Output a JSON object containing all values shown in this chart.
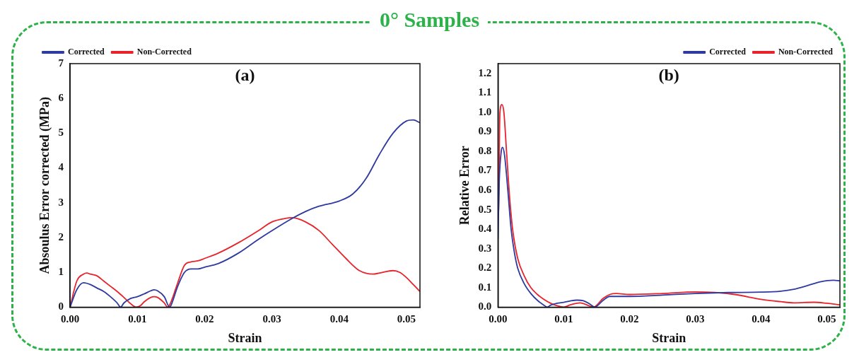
{
  "chart_data": [
    {
      "type": "line",
      "title": "0° Samples",
      "xlabel": "Strain",
      "ylabel": "Absoulus Error corrected (MPa)",
      "annotations": [
        "(a)"
      ],
      "legend": "top left",
      "xlim": [
        0,
        0.052
      ],
      "xticks": [
        {
          "value": 0,
          "label": "0.00"
        },
        0.01,
        0.02,
        0.03,
        0.04,
        0.05
      ],
      "ylim": [
        0,
        7
      ],
      "yticks": [
        0,
        1,
        2,
        3,
        4,
        5,
        6,
        7
      ],
      "series": [
        {
          "name": "Corrected",
          "color": "#2e3a9f",
          "x": [
            0,
            0.001,
            0.002,
            0.003,
            0.004,
            0.005,
            0.006,
            0.007,
            0.0075,
            0.008,
            0.009,
            0.01,
            0.011,
            0.012,
            0.0125,
            0.013,
            0.014,
            0.0148,
            0.015,
            0.016,
            0.017,
            0.018,
            0.019,
            0.02,
            0.022,
            0.025,
            0.028,
            0.03,
            0.033,
            0.035,
            0.037,
            0.04,
            0.042,
            0.044,
            0.046,
            0.048,
            0.05,
            0.051,
            0.052
          ],
          "values": [
            0,
            0.5,
            0.7,
            0.65,
            0.55,
            0.45,
            0.3,
            0.12,
            0,
            0.12,
            0.25,
            0.3,
            0.38,
            0.47,
            0.5,
            0.47,
            0.3,
            0,
            0.05,
            0.6,
            1.0,
            1.1,
            1.1,
            1.15,
            1.25,
            1.55,
            1.95,
            2.2,
            2.55,
            2.75,
            2.9,
            3.05,
            3.25,
            3.7,
            4.4,
            5.0,
            5.35,
            5.38,
            5.3
          ]
        },
        {
          "name": "Non-Corrected",
          "color": "#e8232b",
          "x": [
            0,
            0.001,
            0.002,
            0.0025,
            0.003,
            0.004,
            0.005,
            0.006,
            0.007,
            0.008,
            0.009,
            0.0098,
            0.0105,
            0.011,
            0.012,
            0.0125,
            0.013,
            0.014,
            0.0145,
            0.015,
            0.016,
            0.017,
            0.018,
            0.019,
            0.02,
            0.022,
            0.025,
            0.028,
            0.03,
            0.032,
            0.033,
            0.035,
            0.037,
            0.039,
            0.041,
            0.043,
            0.045,
            0.046,
            0.048,
            0.049,
            0.05,
            0.051,
            0.052
          ],
          "values": [
            0,
            0.75,
            0.95,
            0.98,
            0.95,
            0.9,
            0.75,
            0.6,
            0.45,
            0.28,
            0.1,
            0,
            0.05,
            0.15,
            0.28,
            0.3,
            0.28,
            0.12,
            0,
            0.15,
            0.7,
            1.2,
            1.3,
            1.33,
            1.4,
            1.55,
            1.85,
            2.2,
            2.45,
            2.55,
            2.57,
            2.45,
            2.2,
            1.8,
            1.4,
            1.05,
            0.95,
            0.98,
            1.05,
            1.0,
            0.85,
            0.65,
            0.45
          ]
        }
      ]
    },
    {
      "type": "line",
      "xlabel": "Strain",
      "ylabel": "Relative Error",
      "annotations": [
        "(b)"
      ],
      "legend": "top right",
      "xlim": [
        0,
        0.052
      ],
      "xticks": [
        {
          "value": 0,
          "label": "0.00"
        },
        0.01,
        0.02,
        0.03,
        0.04,
        0.05
      ],
      "ylim": [
        0,
        1.25
      ],
      "yticks": [
        {
          "value": 0,
          "label": "0.0"
        },
        0.1,
        0.2,
        0.3,
        0.4,
        0.5,
        0.6,
        0.7,
        0.8,
        0.9,
        {
          "value": 1,
          "label": "1.0"
        },
        1.1,
        1.2
      ],
      "series": [
        {
          "name": "Corrected",
          "color": "#2e3a9f",
          "x": [
            0,
            0.0002,
            0.0005,
            0.0007,
            0.001,
            0.0015,
            0.002,
            0.0025,
            0.003,
            0.004,
            0.005,
            0.006,
            0.007,
            0.0075,
            0.008,
            0.009,
            0.01,
            0.011,
            0.012,
            0.013,
            0.014,
            0.0147,
            0.016,
            0.017,
            0.02,
            0.025,
            0.03,
            0.035,
            0.04,
            0.043,
            0.045,
            0.047,
            0.049,
            0.051,
            0.052
          ],
          "values": [
            0.35,
            0.65,
            0.8,
            0.82,
            0.78,
            0.6,
            0.4,
            0.28,
            0.2,
            0.12,
            0.07,
            0.035,
            0.01,
            0,
            0.01,
            0.02,
            0.025,
            0.032,
            0.036,
            0.033,
            0.015,
            0,
            0.035,
            0.055,
            0.055,
            0.062,
            0.07,
            0.075,
            0.077,
            0.082,
            0.092,
            0.11,
            0.13,
            0.138,
            0.135
          ]
        },
        {
          "name": "Non-Corrected",
          "color": "#e8232b",
          "x": [
            0.0001,
            0.0003,
            0.0006,
            0.0009,
            0.0013,
            0.0018,
            0.0023,
            0.003,
            0.004,
            0.005,
            0.006,
            0.007,
            0.008,
            0.009,
            0.01,
            0.011,
            0.012,
            0.0125,
            0.013,
            0.014,
            0.0145,
            0.016,
            0.017,
            0.018,
            0.02,
            0.025,
            0.03,
            0.033,
            0.036,
            0.04,
            0.043,
            0.045,
            0.048,
            0.05,
            0.052
          ],
          "values": [
            0.5,
            1.0,
            1.04,
            1.0,
            0.8,
            0.55,
            0.38,
            0.25,
            0.16,
            0.1,
            0.065,
            0.04,
            0.02,
            0.007,
            0,
            0.012,
            0.02,
            0.022,
            0.018,
            0.005,
            0,
            0.045,
            0.065,
            0.07,
            0.065,
            0.07,
            0.078,
            0.075,
            0.065,
            0.04,
            0.028,
            0.022,
            0.025,
            0.02,
            0.012
          ]
        }
      ]
    }
  ]
}
